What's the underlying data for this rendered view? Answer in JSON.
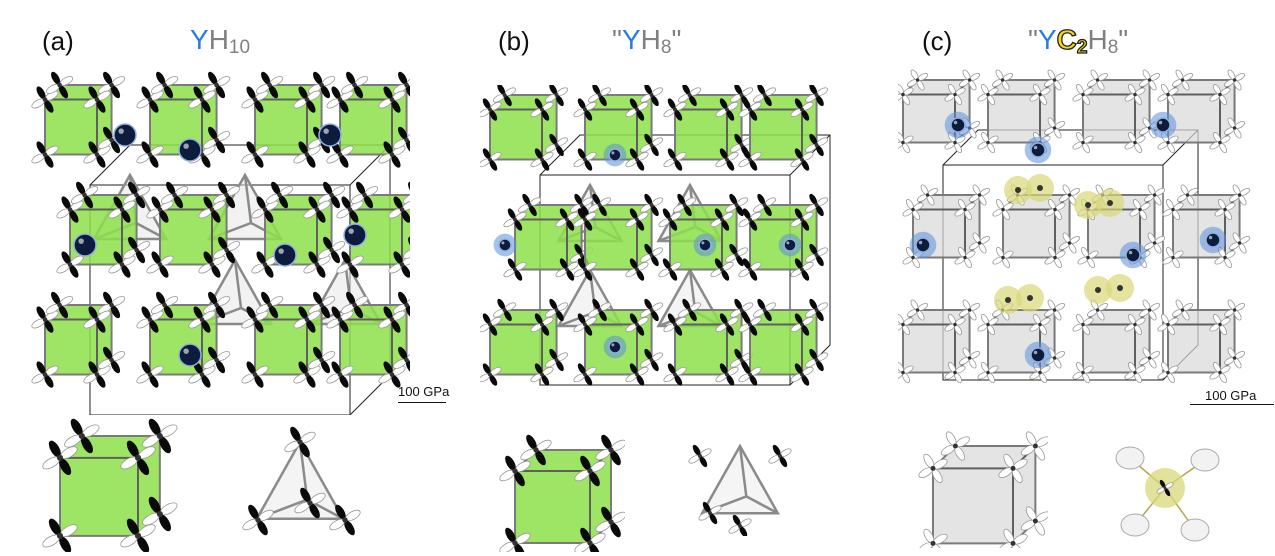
{
  "panels": [
    {
      "label": "(a)",
      "formula": {
        "prefix": "",
        "y": "Y",
        "c": "",
        "c_sub": "",
        "h": "H",
        "h_sub": "10",
        "suffix": ""
      },
      "scale_bar": "100 GPa"
    },
    {
      "label": "(b)",
      "formula": {
        "prefix": "\"",
        "y": "Y",
        "c": "",
        "c_sub": "",
        "h": "H",
        "h_sub": "8",
        "suffix": "\""
      },
      "scale_bar": ""
    },
    {
      "label": "(c)",
      "formula": {
        "prefix": "\"",
        "y": "Y",
        "c": "C",
        "c_sub": "2",
        "h": "H",
        "h_sub": "8",
        "suffix": "\""
      },
      "scale_bar": "100 GPa"
    }
  ],
  "colors": {
    "yttrium_label": "#2a7de1",
    "hydrogen_label": "#808080",
    "carbon_label": "#f3d616",
    "cage_fill": "#8ee04a",
    "cage_fill_c": "#d9d9d9",
    "yttrium_atom": "#0d1b3d",
    "yttrium_glow": "#5b8fd8",
    "carbon_glow": "#d8d878",
    "lobe": "#0a0a0a"
  }
}
